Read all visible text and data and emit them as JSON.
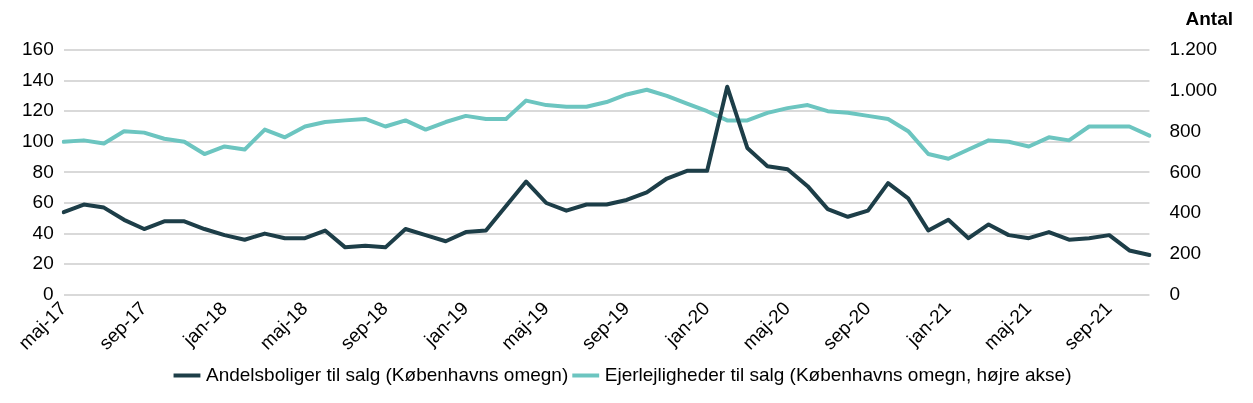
{
  "chart_data": {
    "type": "line",
    "y2label": "Antal",
    "categories": [
      "maj-17",
      null,
      null,
      null,
      "sep-17",
      null,
      null,
      null,
      "jan-18",
      null,
      null,
      null,
      "maj-18",
      null,
      null,
      null,
      "sep-18",
      null,
      null,
      null,
      "jan-19",
      null,
      null,
      null,
      "maj-19",
      null,
      null,
      null,
      "sep-19",
      null,
      null,
      null,
      "jan-20",
      null,
      null,
      null,
      "maj-20",
      null,
      null,
      null,
      "sep-20",
      null,
      null,
      null,
      "jan-21",
      null,
      null,
      null,
      "maj-21",
      null,
      null,
      null,
      "sep-21",
      null,
      null
    ],
    "series": [
      {
        "name": "Andelsboliger til salg (Københavns omegn)",
        "color": "#1d3e48",
        "values": [
          54,
          59,
          57,
          49,
          43,
          48,
          48,
          43,
          39,
          36,
          40,
          37,
          37,
          42,
          31,
          32,
          31,
          43,
          39,
          35,
          41,
          42,
          58,
          74,
          60,
          55,
          59,
          59,
          62,
          67,
          76,
          81,
          81,
          136,
          96,
          84,
          82,
          71,
          56,
          51,
          55,
          73,
          63,
          42,
          49,
          37,
          46,
          39,
          37,
          41,
          36,
          37,
          39,
          29,
          26
        ]
      },
      {
        "name": "Ejerlejligheder til salg (Københavns omegn, højre akse)",
        "color": "#6cc5c0",
        "axis": "y2",
        "values": [
          750,
          757,
          742,
          802,
          795,
          765,
          750,
          690,
          727,
          712,
          810,
          772,
          825,
          847,
          855,
          862,
          825,
          855,
          810,
          847,
          877,
          862,
          862,
          952,
          930,
          922,
          922,
          945,
          982,
          1005,
          975,
          937,
          900,
          855,
          855,
          892,
          915,
          930,
          900,
          892,
          877,
          862,
          802,
          690,
          667,
          712,
          757,
          750,
          727,
          772,
          757,
          825,
          825,
          825,
          780
        ]
      }
    ],
    "ylim": [
      0,
      160
    ],
    "yticks": [
      0,
      20,
      40,
      60,
      80,
      100,
      120,
      140,
      160
    ],
    "y2lim": [
      0,
      1200
    ],
    "y2ticks": [
      0,
      {
        "value": 200,
        "label": "200"
      },
      {
        "value": 400,
        "label": "400"
      },
      {
        "value": 600,
        "label": "600"
      },
      {
        "value": 800,
        "label": "800"
      },
      {
        "value": 1000,
        "label": "1.000"
      },
      {
        "value": 1200,
        "label": "1.200"
      }
    ],
    "grid": "y",
    "legend": "bottom",
    "marker": "none",
    "line_style": "solid"
  }
}
